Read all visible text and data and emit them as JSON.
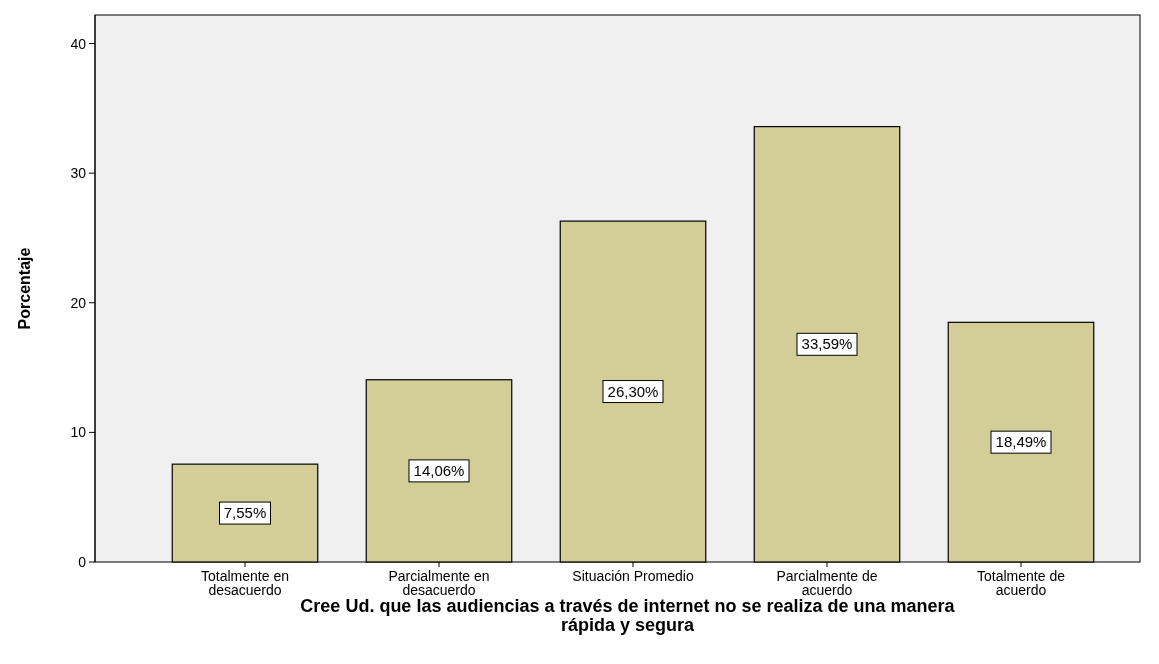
{
  "chart_data": {
    "type": "bar",
    "xlabel": "Cree Ud. que las audiencias a través de internet no se realiza de una manera rápida y segura",
    "ylabel": "Porcentaje",
    "categories": [
      "Totalmente en desacuerdo",
      "Parcialmente en desacuerdo",
      "Situación Promedio",
      "Parcialmente de acuerdo",
      "Totalmente de acuerdo"
    ],
    "values": [
      7.55,
      14.06,
      26.3,
      33.59,
      18.49
    ],
    "value_labels": [
      "7,55%",
      "14,06%",
      "26,30%",
      "33,59%",
      "18,49%"
    ],
    "color": "#d3ce97",
    "ylim": [
      0,
      42.2
    ],
    "yticks": [
      0,
      10,
      20,
      30,
      40
    ],
    "grid": false
  }
}
